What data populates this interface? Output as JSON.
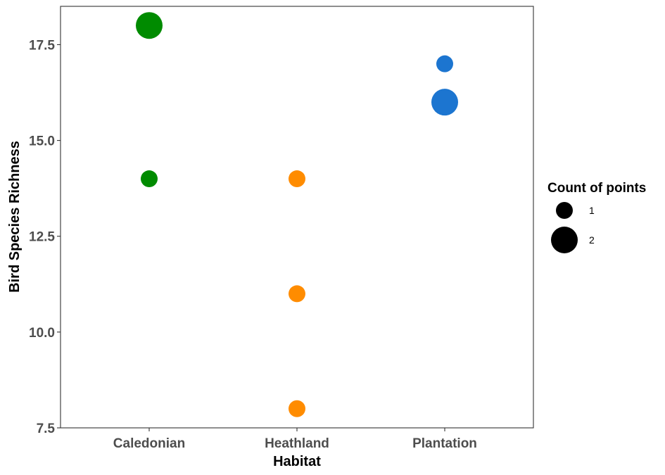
{
  "chart_data": {
    "type": "scatter",
    "xlabel": "Habitat",
    "ylabel": "Bird Species Richness",
    "categories": [
      "Caledonian",
      "Heathland",
      "Plantation"
    ],
    "ylim": [
      7.5,
      18.5
    ],
    "yticks": [
      7.5,
      10.0,
      12.5,
      15.0,
      17.5
    ],
    "ytick_labels": [
      "7.5",
      "10.0",
      "12.5",
      "15.0",
      "17.5"
    ],
    "grid": false,
    "legend_position": "right",
    "points": [
      {
        "category": "Caledonian",
        "y": 18,
        "count": 2,
        "color": "#008B00"
      },
      {
        "category": "Caledonian",
        "y": 14,
        "count": 1,
        "color": "#008B00"
      },
      {
        "category": "Heathland",
        "y": 14,
        "count": 1,
        "color": "#FF8C00"
      },
      {
        "category": "Heathland",
        "y": 11,
        "count": 1,
        "color": "#FF8C00"
      },
      {
        "category": "Heathland",
        "y": 8,
        "count": 1,
        "color": "#FF8C00"
      },
      {
        "category": "Plantation",
        "y": 17,
        "count": 1,
        "color": "#1C75D0"
      },
      {
        "category": "Plantation",
        "y": 16,
        "count": 2,
        "color": "#1C75D0"
      }
    ],
    "legend": {
      "title": "Count of points",
      "entries": [
        {
          "label": "1",
          "count": 1
        },
        {
          "label": "2",
          "count": 2
        }
      ]
    }
  }
}
